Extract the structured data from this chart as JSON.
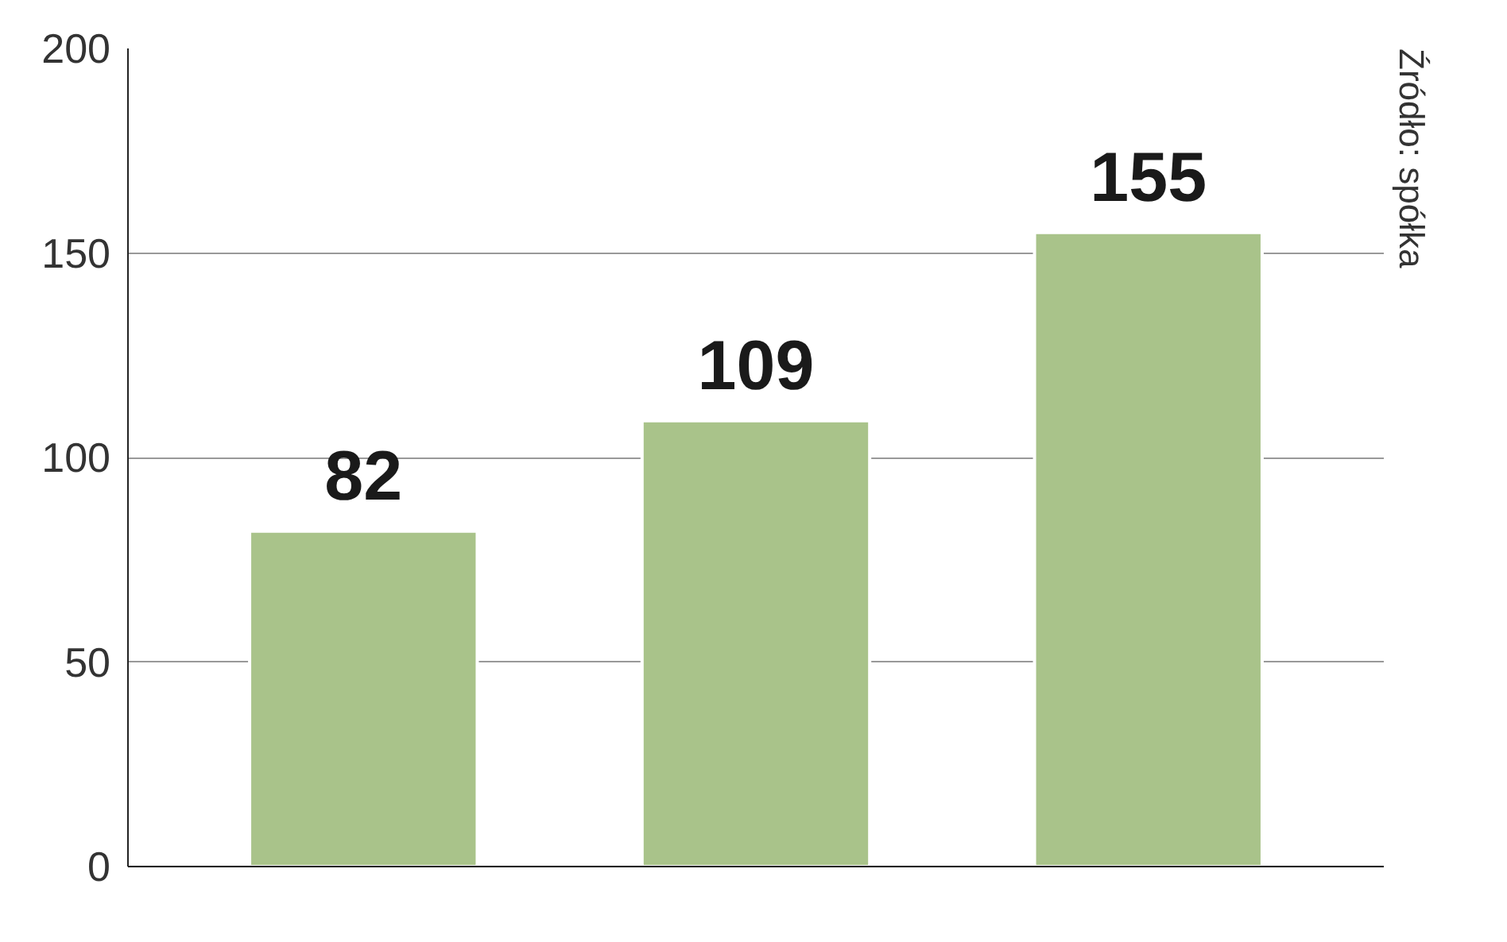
{
  "chart_data": {
    "type": "bar",
    "categories": [
      null,
      null,
      null
    ],
    "values": [
      82,
      109,
      155
    ],
    "color": "#a9c38a",
    "ylim": [
      0,
      200
    ],
    "yticks": [
      0,
      50,
      100,
      150,
      200
    ],
    "grid": "y",
    "data_labels": true,
    "annotations": [
      "Źródło: spółka"
    ]
  }
}
